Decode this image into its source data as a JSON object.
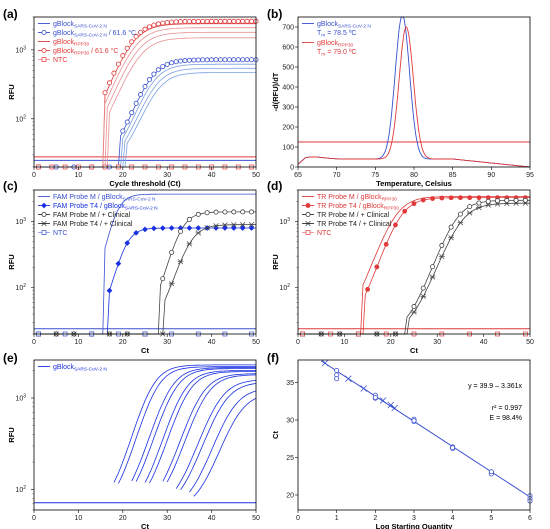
{
  "panels": [
    {
      "letter": "(a)",
      "chart_data": {
        "type": "line",
        "xlabel": "Cycle threshold (Ct)",
        "ylabel": "RFU",
        "xlim": [
          0,
          50
        ],
        "xticks": [
          0,
          10,
          20,
          30,
          40,
          50
        ],
        "ylim": [
          20,
          3000
        ],
        "yscale": "log",
        "yticks": [
          100,
          1000
        ],
        "legend": [
          {
            "text": "gBlock",
            "sub": "SARS-CoV-2 N",
            "tail": "",
            "color": "#3a50d0",
            "marker": "line"
          },
          {
            "text": "gBlock",
            "sub": "SARS-CoV-2 N",
            "tail": " / 61.6 °C",
            "color": "#3a50d0",
            "marker": "circle"
          },
          {
            "text": "gBlock",
            "sub": "RPP30",
            "tail": "",
            "color": "#e03a3a",
            "marker": "line"
          },
          {
            "text": "gBlock",
            "sub": "RPP30",
            "tail": " / 61.6 °C",
            "color": "#e03a3a",
            "marker": "circle"
          },
          {
            "text": "NTC",
            "sub": "",
            "tail": "",
            "color": "#e03a3a",
            "marker": "square"
          }
        ],
        "thresholds": [
          {
            "y": 25,
            "color": "#3a50d0"
          },
          {
            "y": 28,
            "color": "#e03a3a"
          }
        ],
        "series": [
          {
            "color": "#e03a3a",
            "baseline": 20,
            "plateau": 2400,
            "mid": 22,
            "k": 0.18,
            "start": 16
          },
          {
            "color": "#e89090",
            "baseline": 20,
            "plateau": 2100,
            "mid": 22.5,
            "k": 0.18,
            "start": 16
          },
          {
            "color": "#e89090",
            "baseline": 20,
            "plateau": 1800,
            "mid": 23,
            "k": 0.18,
            "start": 16.5
          },
          {
            "color": "#e89090",
            "baseline": 20,
            "plateau": 1500,
            "mid": 23.5,
            "k": 0.18,
            "start": 17
          },
          {
            "color": "#3a50d0",
            "baseline": 20,
            "plateau": 700,
            "mid": 26,
            "k": 0.2,
            "start": 19.5
          },
          {
            "color": "#7aa0e0",
            "baseline": 20,
            "plateau": 620,
            "mid": 26.5,
            "k": 0.2,
            "start": 20
          },
          {
            "color": "#7aa0e0",
            "baseline": 20,
            "plateau": 540,
            "mid": 27,
            "k": 0.2,
            "start": 20.5
          },
          {
            "color": "#7aa0e0",
            "baseline": 20,
            "plateau": 470,
            "mid": 27.5,
            "k": 0.2,
            "start": 21
          }
        ],
        "markers": [
          {
            "color": "#e03a3a",
            "shape": "circle",
            "baseline": 20,
            "plateau": 2600,
            "mid": 22,
            "k": 0.18,
            "start": 16
          },
          {
            "color": "#3a50d0",
            "shape": "circle",
            "baseline": 20,
            "plateau": 720,
            "mid": 26,
            "k": 0.2,
            "start": 19.5
          },
          {
            "color": "#e03a3a",
            "shape": "square",
            "baseline": 20,
            "plateau": 20,
            "mid": 0,
            "k": 0,
            "start": 100
          }
        ]
      }
    },
    {
      "letter": "(b)",
      "chart_data": {
        "type": "line",
        "xlabel": "Temperature, Celsius",
        "ylabel": "-d(RFU)/dT",
        "xlim": [
          65,
          95
        ],
        "xticks": [
          65,
          70,
          75,
          80,
          85,
          90,
          95
        ],
        "ylim": [
          0,
          750
        ],
        "yticks": [
          0,
          100,
          200,
          300,
          400,
          500,
          600,
          700
        ],
        "legend": [
          {
            "text": "gBlock",
            "sub": "SARS-CoV-2 N",
            "tail": "",
            "color": "#3a50d0",
            "marker": "line",
            "tm": "T",
            "tmsub": "m",
            "tmval": " = 78.5 ºC"
          },
          {
            "text": "gBlock",
            "sub": "RPP30",
            "tail": "",
            "color": "#e03a3a",
            "marker": "line",
            "tm": "T",
            "tmsub": "m",
            "tmval": " = 79.0 ºC"
          }
        ],
        "threshold": 125,
        "peaks": [
          {
            "color": "#3a50d0",
            "center": 78.5,
            "height": 720,
            "width": 1.3
          },
          {
            "color": "#e03a3a",
            "center": 79.0,
            "height": 660,
            "width": 1.3
          }
        ]
      }
    },
    {
      "letter": "(c)",
      "chart_data": {
        "type": "line",
        "xlabel": "Ct",
        "ylabel": "RFU",
        "xlim": [
          0,
          50
        ],
        "xticks": [
          0,
          10,
          20,
          30,
          40,
          50
        ],
        "ylim": [
          20,
          3000
        ],
        "yscale": "log",
        "yticks": [
          100,
          1000
        ],
        "legend": [
          {
            "text": "FAM Probe M / gBlock",
            "sub": "SARS-CoV-2 N",
            "tail": "",
            "color": "#3a50d0",
            "marker": "line"
          },
          {
            "text": "FAM Probe T4 / gBlock",
            "sub": "SARS-CoV-2 N",
            "tail": "",
            "color": "#1a30e0",
            "marker": "diamond"
          },
          {
            "text": "FAM Probe M / + Clinical",
            "sub": "",
            "tail": "",
            "color": "#333333",
            "marker": "circle"
          },
          {
            "text": "FAM Probe T4 / + Clinical",
            "sub": "",
            "tail": "",
            "color": "#333333",
            "marker": "star"
          },
          {
            "text": "NTC",
            "sub": "",
            "tail": "",
            "color": "#3a50d0",
            "marker": "square"
          }
        ],
        "thresholds": [
          {
            "y": 24,
            "color": "#3a50d0"
          }
        ],
        "series": [
          {
            "color": "#3a50d0",
            "shape": "line",
            "baseline": 20,
            "plateau": 2600,
            "mid": 18.5,
            "k": 0.32,
            "start": 16
          },
          {
            "color": "#1a30e0",
            "shape": "diamond",
            "baseline": 20,
            "plateau": 800,
            "mid": 20.5,
            "k": 0.3,
            "start": 17
          },
          {
            "color": "#444444",
            "shape": "circle",
            "baseline": 20,
            "plateau": 1400,
            "mid": 33,
            "k": 0.27,
            "start": 28.5
          },
          {
            "color": "#444444",
            "shape": "star",
            "baseline": 20,
            "plateau": 900,
            "mid": 35,
            "k": 0.24,
            "start": 29.5
          },
          {
            "color": "#3a50d0",
            "shape": "square",
            "baseline": 20,
            "plateau": 20,
            "mid": 0,
            "k": 0,
            "start": 100
          }
        ]
      }
    },
    {
      "letter": "(d)",
      "chart_data": {
        "type": "line",
        "xlabel": "Ct",
        "ylabel": "RFU",
        "xlim": [
          0,
          50
        ],
        "xticks": [
          0,
          10,
          20,
          30,
          40,
          50
        ],
        "ylim": [
          20,
          3000
        ],
        "yscale": "log",
        "yticks": [
          100,
          1000
        ],
        "legend": [
          {
            "text": "TR Probe M / gBlock",
            "sub": "RPP30",
            "tail": "",
            "color": "#e03a3a",
            "marker": "line"
          },
          {
            "text": "TR Probe T4 / gBlock",
            "sub": "RPP30",
            "tail": "",
            "color": "#e03a3a",
            "marker": "dot"
          },
          {
            "text": "TR Probe M / + Clinical",
            "sub": "",
            "tail": "",
            "color": "#333333",
            "marker": "circle"
          },
          {
            "text": "TR Probe T4 / + Clinical",
            "sub": "",
            "tail": "",
            "color": "#333333",
            "marker": "star"
          },
          {
            "text": "NTC",
            "sub": "",
            "tail": "",
            "color": "#e03a3a",
            "marker": "square"
          }
        ],
        "thresholds": [
          {
            "y": 24,
            "color": "#e03a3a"
          }
        ],
        "series": [
          {
            "color": "#e03a3a",
            "shape": "line",
            "baseline": 20,
            "plateau": 2400,
            "mid": 21,
            "k": 0.21,
            "start": 14
          },
          {
            "color": "#e03a3a",
            "shape": "dot",
            "baseline": 20,
            "plateau": 2300,
            "mid": 22,
            "k": 0.22,
            "start": 14.5
          },
          {
            "color": "#444444",
            "shape": "circle",
            "baseline": 20,
            "plateau": 2100,
            "mid": 34,
            "k": 0.21,
            "start": 23.5
          },
          {
            "color": "#444444",
            "shape": "star",
            "baseline": 20,
            "plateau": 1900,
            "mid": 35,
            "k": 0.2,
            "start": 24
          },
          {
            "color": "#e03a3a",
            "shape": "square",
            "baseline": 20,
            "plateau": 20,
            "mid": 0,
            "k": 0,
            "start": 100
          }
        ]
      }
    },
    {
      "letter": "(e)",
      "chart_data": {
        "type": "line",
        "xlabel": "Ct",
        "ylabel": "RFU",
        "xlim": [
          0,
          50
        ],
        "xticks": [
          0,
          10,
          20,
          30,
          40,
          50
        ],
        "ylim": [
          60,
          2600
        ],
        "yscale": "log",
        "yticks": [
          100,
          1000
        ],
        "legend": [
          {
            "text": "gBlock",
            "sub": "SARS-CoV-2 N",
            "tail": "",
            "color": "#1a30e0",
            "marker": "line"
          }
        ],
        "thresholds": [
          {
            "y": 72,
            "color": "#1a30e0"
          }
        ],
        "series": [
          {
            "color": "#1a30e0",
            "start": 18,
            "plateau": 2300,
            "mid": 26,
            "k": 0.25
          },
          {
            "color": "#1a30e0",
            "start": 19,
            "plateau": 2200,
            "mid": 27,
            "k": 0.25
          },
          {
            "color": "#1a30e0",
            "start": 22,
            "plateau": 2150,
            "mid": 30,
            "k": 0.24
          },
          {
            "color": "#1a30e0",
            "start": 23,
            "plateau": 2100,
            "mid": 31,
            "k": 0.24
          },
          {
            "color": "#1a30e0",
            "start": 25,
            "plateau": 2000,
            "mid": 33,
            "k": 0.24
          },
          {
            "color": "#1a30e0",
            "start": 26,
            "plateau": 1950,
            "mid": 34,
            "k": 0.24
          },
          {
            "color": "#1a30e0",
            "start": 29,
            "plateau": 1850,
            "mid": 37,
            "k": 0.23
          },
          {
            "color": "#1a30e0",
            "start": 30,
            "plateau": 1800,
            "mid": 38,
            "k": 0.23
          },
          {
            "color": "#1a30e0",
            "start": 32,
            "plateau": 1600,
            "mid": 41,
            "k": 0.22
          },
          {
            "color": "#1a30e0",
            "start": 33,
            "plateau": 1500,
            "mid": 42,
            "k": 0.22
          },
          {
            "color": "#1a30e0",
            "start": 35,
            "plateau": 1300,
            "mid": 44,
            "k": 0.22
          },
          {
            "color": "#1a30e0",
            "start": 36,
            "plateau": 1150,
            "mid": 45.5,
            "k": 0.22
          }
        ]
      }
    },
    {
      "letter": "(f)",
      "chart_data": {
        "type": "scatter",
        "xlabel": "Log Starting Quantity",
        "ylabel": "Ct",
        "xlim": [
          0,
          6
        ],
        "xticks": [
          0,
          1,
          2,
          3,
          4,
          5,
          6
        ],
        "ylim": [
          18,
          38
        ],
        "yticks": [
          20,
          25,
          30,
          35
        ],
        "equation": "y = 39.9 – 3.361x",
        "r2": "r² = 0.997",
        "eff": "E = 98.4%",
        "fit": {
          "intercept": 39.9,
          "slope": -3.361
        },
        "points": [
          {
            "x": 1,
            "y": 36.6,
            "m": "o"
          },
          {
            "x": 1,
            "y": 36.0,
            "m": "o"
          },
          {
            "x": 1,
            "y": 35.5,
            "m": "o"
          },
          {
            "x": 2,
            "y": 33.3,
            "m": "o"
          },
          {
            "x": 2,
            "y": 32.9,
            "m": "o"
          },
          {
            "x": 2,
            "y": 33.0,
            "m": "o"
          },
          {
            "x": 3,
            "y": 30.1,
            "m": "o"
          },
          {
            "x": 3,
            "y": 29.8,
            "m": "o"
          },
          {
            "x": 3,
            "y": 29.9,
            "m": "o"
          },
          {
            "x": 4,
            "y": 26.4,
            "m": "o"
          },
          {
            "x": 4,
            "y": 26.2,
            "m": "o"
          },
          {
            "x": 4,
            "y": 26.3,
            "m": "o"
          },
          {
            "x": 5,
            "y": 23.0,
            "m": "o"
          },
          {
            "x": 5,
            "y": 22.8,
            "m": "o"
          },
          {
            "x": 5,
            "y": 23.1,
            "m": "o"
          },
          {
            "x": 6,
            "y": 19.9,
            "m": "o"
          },
          {
            "x": 6,
            "y": 19.5,
            "m": "o"
          },
          {
            "x": 6,
            "y": 19.2,
            "m": "o"
          },
          {
            "x": 0.7,
            "y": 37.6,
            "m": "x"
          },
          {
            "x": 1.3,
            "y": 35.5,
            "m": "x"
          },
          {
            "x": 1.7,
            "y": 34.2,
            "m": "x"
          },
          {
            "x": 2.2,
            "y": 32.6,
            "m": "x"
          },
          {
            "x": 2.4,
            "y": 32.0,
            "m": "x"
          },
          {
            "x": 2.5,
            "y": 31.6,
            "m": "x"
          }
        ]
      }
    }
  ]
}
